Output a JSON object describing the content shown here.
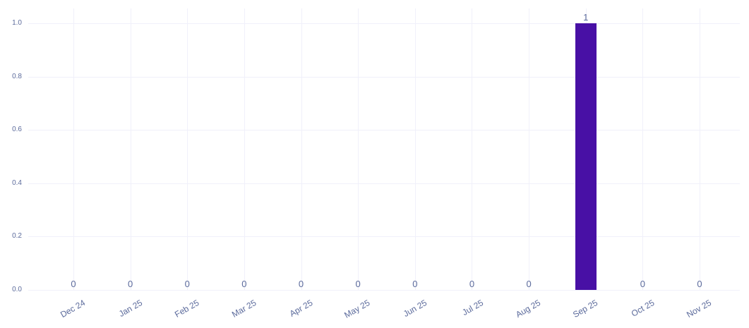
{
  "chart_data": {
    "type": "bar",
    "categories": [
      "Dec 24",
      "Jan 25",
      "Feb 25",
      "Mar 25",
      "Apr 25",
      "May 25",
      "Jun 25",
      "Jul 25",
      "Aug 25",
      "Sep 25",
      "Oct 25",
      "Nov 25"
    ],
    "values": [
      0,
      0,
      0,
      0,
      0,
      0,
      0,
      0,
      0,
      1,
      0,
      0
    ],
    "bar_value_labels": [
      "0",
      "0",
      "0",
      "0",
      "0",
      "0",
      "0",
      "0",
      "0",
      "1",
      "0",
      "0"
    ],
    "title": "",
    "xlabel": "",
    "ylabel": "",
    "ylim": [
      0.0,
      1.0
    ],
    "yticks": [
      "0.0",
      "0.2",
      "0.4",
      "0.6",
      "0.8",
      "1.0"
    ],
    "grid": true,
    "legend_position": "none",
    "x_tick_angle": -30,
    "colors": {
      "bar": "#4810a5",
      "text": "#5c6b9c",
      "gridline": "#f0f0fa",
      "background": "#ffffff"
    }
  }
}
